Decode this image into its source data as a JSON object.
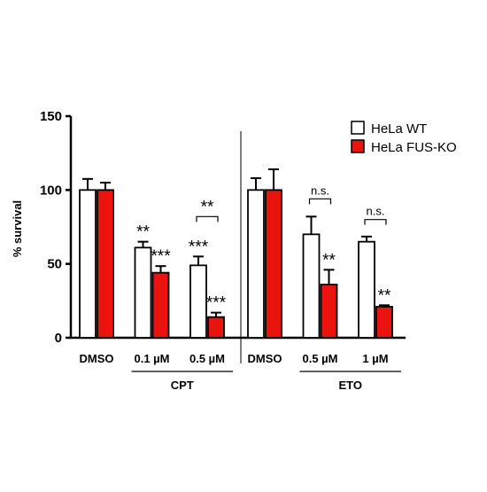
{
  "chart_data": {
    "type": "bar",
    "ylabel": "% survival",
    "ylim": [
      0,
      150
    ],
    "yticks": [
      "0",
      "50",
      "100",
      "150"
    ],
    "legend_position": "top-right",
    "series": [
      {
        "name": "HeLa WT",
        "color": "#ffffff"
      },
      {
        "name": "HeLa FUS-KO",
        "color": "#e8140d"
      }
    ],
    "groups": [
      {
        "categories": [
          {
            "label": "DMSO",
            "values": [
              100,
              100
            ],
            "errors": [
              7.5,
              5
            ],
            "marks": [
              "",
              ""
            ]
          },
          {
            "label": "0.1 µM",
            "values": [
              61,
              44
            ],
            "errors": [
              4,
              4.5
            ],
            "marks": [
              "**",
              "***"
            ]
          },
          {
            "label": "0.5 µM",
            "values": [
              49,
              14
            ],
            "errors": [
              6,
              3
            ],
            "marks": [
              "***",
              "***"
            ]
          }
        ]
      },
      {
        "categories": [
          {
            "label": "DMSO",
            "values": [
              100,
              100
            ],
            "errors": [
              8,
              14
            ],
            "marks": [
              "",
              ""
            ]
          },
          {
            "label": "0.5 µM",
            "values": [
              70,
              36
            ],
            "errors": [
              12,
              10
            ],
            "marks": [
              "",
              "**"
            ]
          },
          {
            "label": "1 µM",
            "values": [
              65,
              21
            ],
            "errors": [
              3.5,
              1
            ],
            "marks": [
              "",
              "**"
            ]
          }
        ]
      }
    ],
    "group_labels": [
      "CPT",
      "ETO"
    ],
    "comparisons": [
      {
        "group": 0,
        "category": 2,
        "label": "**"
      },
      {
        "group": 1,
        "category": 1,
        "label": "n.s."
      },
      {
        "group": 1,
        "category": 2,
        "label": "n.s."
      }
    ]
  }
}
